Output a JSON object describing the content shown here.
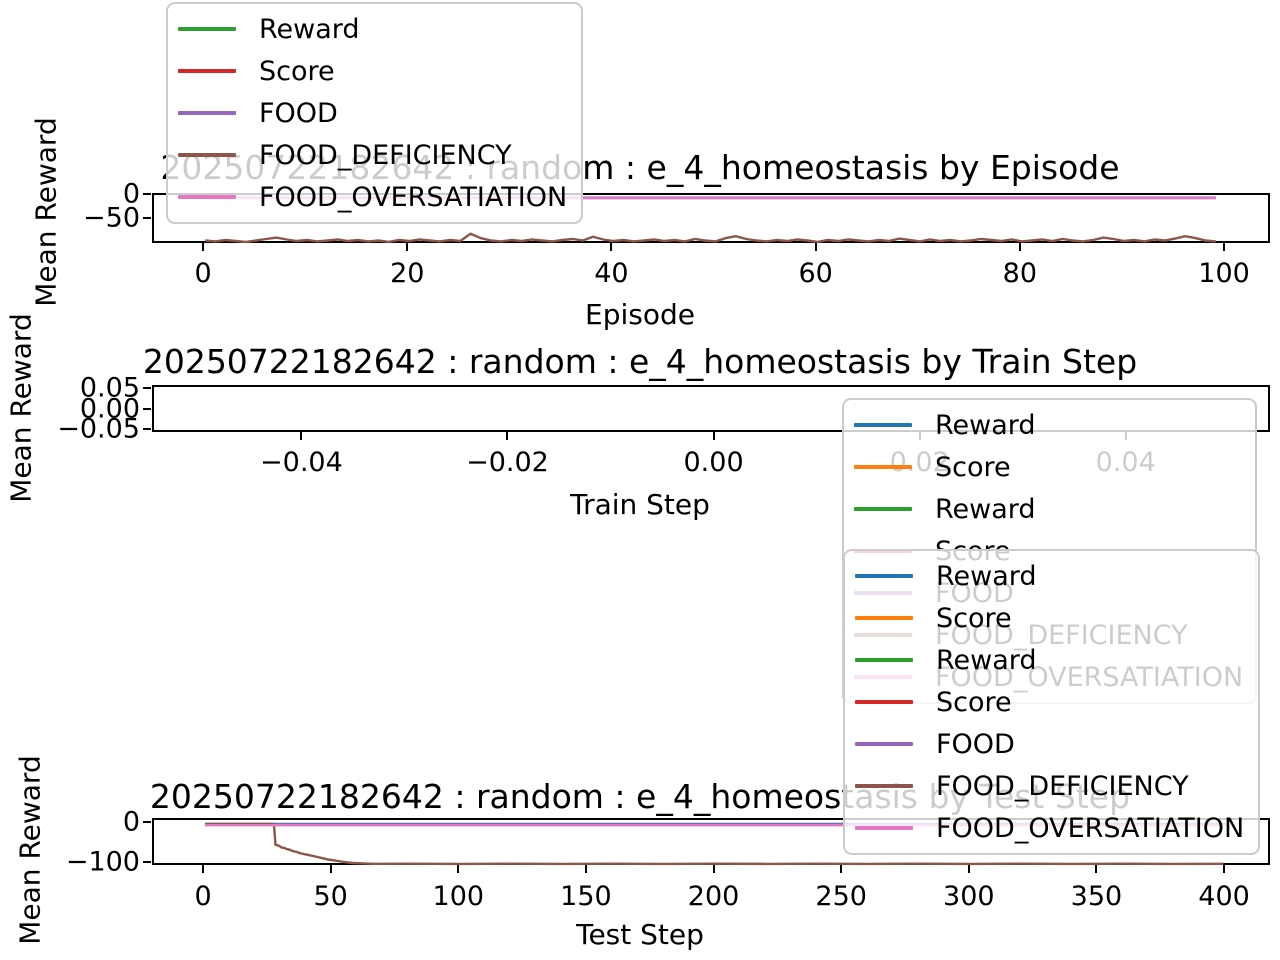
{
  "figure": {
    "background": "#ffffff"
  },
  "palette": {
    "blue": "#1f77b4",
    "orange": "#ff7f0e",
    "green": "#2ca02c",
    "red": "#d62728",
    "purple": "#9467bd",
    "brown": "#8c564b",
    "pink": "#e377c2",
    "axis": "#000000",
    "legend_border": "#cbcbcb"
  },
  "chart_data": [
    {
      "type": "line",
      "title": "20250722182642 : random : e_4_homeostasis by Episode",
      "xlabel": "Episode",
      "ylabel": "Mean Reward",
      "xlim": [
        -5,
        104.5
      ],
      "ylim": [
        -102.5,
        2.5
      ],
      "grid": false,
      "legend_position": "upper left (overlapping title)",
      "xticks": [
        {
          "v": 0,
          "t": "0"
        },
        {
          "v": 20,
          "t": "20"
        },
        {
          "v": 40,
          "t": "40"
        },
        {
          "v": 60,
          "t": "60"
        },
        {
          "v": 80,
          "t": "80"
        },
        {
          "v": 100,
          "t": "100"
        }
      ],
      "yticks": [
        {
          "v": 0,
          "t": "0"
        },
        {
          "v": -50,
          "t": "−50"
        }
      ],
      "legend": [
        {
          "label": "Reward",
          "color": "green"
        },
        {
          "label": "Score",
          "color": "red"
        },
        {
          "label": "FOOD",
          "color": "purple"
        },
        {
          "label": "FOOD_DEFICIENCY",
          "color": "brown"
        },
        {
          "label": "FOOD_OVERSATIATION",
          "color": "pink"
        }
      ],
      "series": [
        {
          "name": "FOOD_DEFICIENCY",
          "color": "brown",
          "x0": 0,
          "dx": 1,
          "y": [
            -93,
            -95,
            -92,
            -94,
            -96,
            -93,
            -90,
            -87,
            -91,
            -94,
            -92,
            -95,
            -93,
            -91,
            -94,
            -92,
            -95,
            -93,
            -96,
            -92,
            -94,
            -91,
            -93,
            -95,
            -92,
            -94,
            -79,
            -88,
            -93,
            -95,
            -92,
            -94,
            -91,
            -93,
            -95,
            -92,
            -90,
            -93,
            -85,
            -91,
            -94,
            -92,
            -95,
            -93,
            -91,
            -94,
            -92,
            -95,
            -90,
            -93,
            -95,
            -88,
            -84,
            -90,
            -93,
            -95,
            -92,
            -94,
            -91,
            -93,
            -96,
            -92,
            -94,
            -91,
            -93,
            -95,
            -92,
            -94,
            -89,
            -92,
            -95,
            -91,
            -94,
            -92,
            -95,
            -93,
            -90,
            -92,
            -94,
            -91,
            -95,
            -93,
            -91,
            -94,
            -90,
            -93,
            -95,
            -92,
            -87,
            -90,
            -94,
            -92,
            -95,
            -91,
            -93,
            -89,
            -84,
            -88,
            -93,
            -95
          ]
        },
        {
          "name": "FOOD",
          "color": "purple",
          "points": [
            [
              0,
              -3.2
            ],
            [
              99,
              -3.2
            ]
          ]
        },
        {
          "name": "FOOD_OVERSATIATION",
          "color": "pink",
          "points": [
            [
              0,
              -4.2
            ],
            [
              99,
              -4.2
            ]
          ]
        }
      ]
    },
    {
      "type": "line",
      "title": "20250722182642 : random : e_4_homeostasis by Train Step",
      "xlabel": "Train Step",
      "ylabel": "Mean Reward",
      "xlim": [
        -0.0545,
        0.054
      ],
      "ylim": [
        -0.0575,
        0.0575
      ],
      "grid": false,
      "legend_position": "right (overlapping x tick labels)",
      "xticks": [
        {
          "v": -0.04,
          "t": "−0.04"
        },
        {
          "v": -0.02,
          "t": "−0.02"
        },
        {
          "v": 0,
          "t": "0.00"
        },
        {
          "v": 0.02,
          "t": "0.02"
        },
        {
          "v": 0.04,
          "t": "0.04"
        }
      ],
      "yticks": [
        {
          "v": 0.05,
          "t": "0.05"
        },
        {
          "v": 0,
          "t": "0.00"
        },
        {
          "v": -0.05,
          "t": "−0.05"
        }
      ],
      "legend": [
        {
          "label": "Reward",
          "color": "blue"
        },
        {
          "label": "Score",
          "color": "orange"
        },
        {
          "label": "Reward",
          "color": "green"
        },
        {
          "label": "Score",
          "color": "red"
        },
        {
          "label": "FOOD",
          "color": "purple"
        },
        {
          "label": "FOOD_DEFICIENCY",
          "color": "brown"
        },
        {
          "label": "FOOD_OVERSATIATION",
          "color": "pink"
        }
      ],
      "series": []
    },
    {
      "type": "line",
      "title": "20250722182642 : random : e_4_homeostasis by Test Step",
      "xlabel": "Test Step",
      "ylabel": "Mean Reward",
      "xlim": [
        -20,
        418
      ],
      "ylim": [
        -108,
        10
      ],
      "grid": false,
      "legend_position": "upper right (overlapping title and axes)",
      "xticks": [
        {
          "v": 0,
          "t": "0"
        },
        {
          "v": 50,
          "t": "50"
        },
        {
          "v": 100,
          "t": "100"
        },
        {
          "v": 150,
          "t": "150"
        },
        {
          "v": 200,
          "t": "200"
        },
        {
          "v": 250,
          "t": "250"
        },
        {
          "v": 300,
          "t": "300"
        },
        {
          "v": 350,
          "t": "350"
        },
        {
          "v": 400,
          "t": "400"
        }
      ],
      "yticks": [
        {
          "v": 0,
          "t": "0"
        },
        {
          "v": -100,
          "t": "−100"
        }
      ],
      "legend": [
        {
          "label": "Reward",
          "color": "blue"
        },
        {
          "label": "Score",
          "color": "orange"
        },
        {
          "label": "Reward",
          "color": "green"
        },
        {
          "label": "Score",
          "color": "red"
        },
        {
          "label": "FOOD",
          "color": "purple"
        },
        {
          "label": "FOOD_DEFICIENCY",
          "color": "brown"
        },
        {
          "label": "FOOD_OVERSATIATION",
          "color": "pink"
        }
      ],
      "series": [
        {
          "name": "Reward",
          "color": "blue",
          "points": [
            [
              0,
              0
            ],
            [
              400,
              0
            ]
          ]
        },
        {
          "name": "FOOD",
          "color": "purple",
          "points": [
            [
              0,
              -1
            ],
            [
              400,
              -1
            ]
          ]
        },
        {
          "name": "FOOD_DEFICIENCY",
          "color": "brown",
          "points": [
            [
              0,
              0
            ],
            [
              26,
              0
            ],
            [
              27,
              -2
            ],
            [
              27.6,
              -52
            ],
            [
              29,
              -55
            ],
            [
              30,
              -59
            ],
            [
              31,
              -60
            ],
            [
              32,
              -63
            ],
            [
              33,
              -64
            ],
            [
              34,
              -67
            ],
            [
              35,
              -69
            ],
            [
              36,
              -70
            ],
            [
              37,
              -73
            ],
            [
              38,
              -74
            ],
            [
              39,
              -76
            ],
            [
              40,
              -77
            ],
            [
              42,
              -80
            ],
            [
              44,
              -83
            ],
            [
              46,
              -86
            ],
            [
              48,
              -89
            ],
            [
              50,
              -91
            ],
            [
              52,
              -93
            ],
            [
              55,
              -96
            ],
            [
              58,
              -98
            ],
            [
              62,
              -99
            ],
            [
              66,
              -100
            ],
            [
              80,
              -99.6
            ],
            [
              100,
              -100.3
            ],
            [
              120,
              -99.7
            ],
            [
              140,
              -100.2
            ],
            [
              160,
              -99.8
            ],
            [
              180,
              -100.3
            ],
            [
              200,
              -99.7
            ],
            [
              220,
              -100.2
            ],
            [
              240,
              -99.8
            ],
            [
              260,
              -100.3
            ],
            [
              280,
              -99.7
            ],
            [
              300,
              -100.2
            ],
            [
              320,
              -99.8
            ],
            [
              340,
              -100.2
            ],
            [
              360,
              -99.7
            ],
            [
              380,
              -100.2
            ],
            [
              399,
              -100
            ]
          ]
        },
        {
          "name": "FOOD_OVERSATIATION",
          "color": "pink",
          "points": [
            [
              0,
              -3
            ],
            [
              400,
              -3
            ]
          ]
        }
      ]
    }
  ]
}
